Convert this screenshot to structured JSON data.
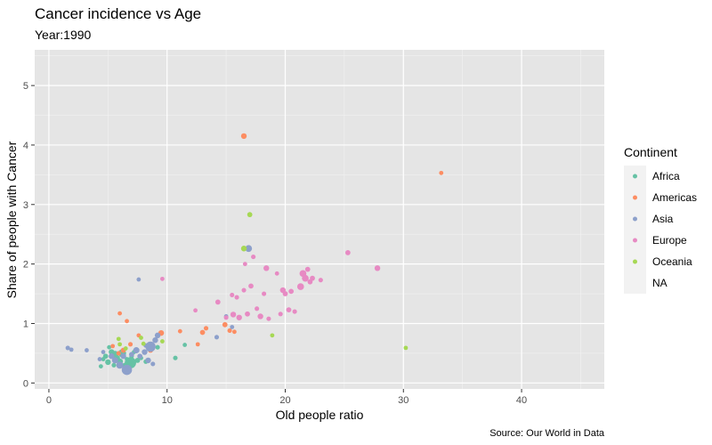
{
  "chart_data": {
    "type": "scatter",
    "title": "Cancer incidence vs Age",
    "subtitle": "Year:1990",
    "xlabel": "Old people ratio",
    "ylabel": "Share of people with Cancer",
    "caption": "Source: Our World in Data",
    "xlim": [
      -1.2,
      47
    ],
    "ylim": [
      -0.1,
      5.6
    ],
    "xticks": [
      0,
      10,
      20,
      30,
      40
    ],
    "yticks": [
      0,
      1,
      2,
      3,
      4,
      5
    ],
    "grid": true,
    "legend": {
      "title": "Continent",
      "placement": "right",
      "entries": [
        {
          "name": "Africa",
          "color": "#66c2a5"
        },
        {
          "name": "Americas",
          "color": "#fc8d62"
        },
        {
          "name": "Asia",
          "color": "#8da0cb"
        },
        {
          "name": "Europe",
          "color": "#e78ac3"
        },
        {
          "name": "Oceania",
          "color": "#a6d854"
        },
        {
          "name": "NA",
          "color": null
        }
      ]
    },
    "series": [
      {
        "name": "Africa",
        "color": "#66c2a5",
        "points": [
          {
            "x": 4.4,
            "y": 0.28,
            "s": 1.5
          },
          {
            "x": 4.6,
            "y": 0.4,
            "s": 1.5
          },
          {
            "x": 4.8,
            "y": 0.45,
            "s": 1.8
          },
          {
            "x": 5.0,
            "y": 0.35,
            "s": 2.0
          },
          {
            "x": 5.1,
            "y": 0.6,
            "s": 1.5
          },
          {
            "x": 5.3,
            "y": 0.52,
            "s": 2.0
          },
          {
            "x": 5.5,
            "y": 0.3,
            "s": 1.6
          },
          {
            "x": 5.6,
            "y": 0.48,
            "s": 2.5
          },
          {
            "x": 5.8,
            "y": 0.42,
            "s": 1.8
          },
          {
            "x": 6.0,
            "y": 0.36,
            "s": 2.2
          },
          {
            "x": 6.2,
            "y": 0.5,
            "s": 2.8
          },
          {
            "x": 6.4,
            "y": 0.3,
            "s": 1.6
          },
          {
            "x": 6.6,
            "y": 0.4,
            "s": 1.5
          },
          {
            "x": 6.8,
            "y": 0.33,
            "s": 1.8
          },
          {
            "x": 7.0,
            "y": 0.45,
            "s": 1.6
          },
          {
            "x": 7.2,
            "y": 0.52,
            "s": 1.5
          },
          {
            "x": 7.5,
            "y": 0.38,
            "s": 1.8
          },
          {
            "x": 7.8,
            "y": 0.42,
            "s": 1.5
          },
          {
            "x": 8.2,
            "y": 0.36,
            "s": 1.6
          },
          {
            "x": 9.2,
            "y": 0.6,
            "s": 1.6
          },
          {
            "x": 10.7,
            "y": 0.42,
            "s": 1.6
          },
          {
            "x": 11.5,
            "y": 0.64,
            "s": 1.5
          },
          {
            "x": 6.9,
            "y": 0.34,
            "s": 4.0
          }
        ]
      },
      {
        "name": "Americas",
        "color": "#fc8d62",
        "points": [
          {
            "x": 16.5,
            "y": 4.15,
            "s": 2.0
          },
          {
            "x": 33.2,
            "y": 3.53,
            "s": 1.5
          },
          {
            "x": 6.0,
            "y": 1.17,
            "s": 1.5
          },
          {
            "x": 6.6,
            "y": 1.04,
            "s": 1.5
          },
          {
            "x": 7.6,
            "y": 0.8,
            "s": 1.5
          },
          {
            "x": 6.9,
            "y": 0.65,
            "s": 1.6
          },
          {
            "x": 9.5,
            "y": 0.84,
            "s": 2.0
          },
          {
            "x": 11.1,
            "y": 0.87,
            "s": 1.5
          },
          {
            "x": 12.6,
            "y": 0.65,
            "s": 1.5
          },
          {
            "x": 13.3,
            "y": 0.92,
            "s": 1.6
          },
          {
            "x": 13.0,
            "y": 0.85,
            "s": 1.8
          },
          {
            "x": 14.9,
            "y": 0.98,
            "s": 1.8
          },
          {
            "x": 15.3,
            "y": 0.88,
            "s": 1.6
          },
          {
            "x": 15.7,
            "y": 0.86,
            "s": 1.5
          },
          {
            "x": 5.9,
            "y": 0.5,
            "s": 1.6
          },
          {
            "x": 6.3,
            "y": 0.55,
            "s": 1.8
          },
          {
            "x": 8.6,
            "y": 0.55,
            "s": 1.8
          },
          {
            "x": 5.4,
            "y": 0.62,
            "s": 1.5
          }
        ]
      },
      {
        "name": "Asia",
        "color": "#8da0cb",
        "points": [
          {
            "x": 1.6,
            "y": 0.59,
            "s": 1.6
          },
          {
            "x": 1.9,
            "y": 0.56,
            "s": 1.5
          },
          {
            "x": 3.2,
            "y": 0.55,
            "s": 1.5
          },
          {
            "x": 4.3,
            "y": 0.4,
            "s": 1.5
          },
          {
            "x": 4.6,
            "y": 0.52,
            "s": 1.5
          },
          {
            "x": 5.3,
            "y": 0.45,
            "s": 2.0
          },
          {
            "x": 5.6,
            "y": 0.38,
            "s": 2.2
          },
          {
            "x": 6.0,
            "y": 0.3,
            "s": 2.5
          },
          {
            "x": 6.3,
            "y": 0.45,
            "s": 2.0
          },
          {
            "x": 6.6,
            "y": 0.22,
            "s": 3.6
          },
          {
            "x": 7.0,
            "y": 0.48,
            "s": 1.8
          },
          {
            "x": 7.4,
            "y": 0.55,
            "s": 2.2
          },
          {
            "x": 7.7,
            "y": 0.45,
            "s": 1.8
          },
          {
            "x": 8.1,
            "y": 0.52,
            "s": 2.0
          },
          {
            "x": 8.4,
            "y": 0.38,
            "s": 2.0
          },
          {
            "x": 8.6,
            "y": 0.61,
            "s": 3.6
          },
          {
            "x": 8.8,
            "y": 0.32,
            "s": 1.6
          },
          {
            "x": 9.0,
            "y": 0.72,
            "s": 2.0
          },
          {
            "x": 9.2,
            "y": 0.8,
            "s": 2.0
          },
          {
            "x": 7.6,
            "y": 1.74,
            "s": 1.5
          },
          {
            "x": 14.2,
            "y": 0.77,
            "s": 1.6
          },
          {
            "x": 15.0,
            "y": 1.12,
            "s": 1.5
          },
          {
            "x": 15.5,
            "y": 0.94,
            "s": 1.5
          },
          {
            "x": 16.9,
            "y": 2.26,
            "s": 2.4
          },
          {
            "x": 8.2,
            "y": 0.63,
            "s": 1.6
          }
        ]
      },
      {
        "name": "Europe",
        "color": "#e78ac3",
        "points": [
          {
            "x": 9.6,
            "y": 1.75,
            "s": 1.5
          },
          {
            "x": 12.4,
            "y": 1.22,
            "s": 1.5
          },
          {
            "x": 14.3,
            "y": 1.36,
            "s": 1.8
          },
          {
            "x": 15.0,
            "y": 1.1,
            "s": 1.6
          },
          {
            "x": 15.5,
            "y": 1.48,
            "s": 1.6
          },
          {
            "x": 15.6,
            "y": 1.15,
            "s": 2.0
          },
          {
            "x": 15.9,
            "y": 1.44,
            "s": 1.6
          },
          {
            "x": 16.1,
            "y": 1.1,
            "s": 2.0
          },
          {
            "x": 16.5,
            "y": 1.56,
            "s": 1.6
          },
          {
            "x": 16.6,
            "y": 2.0,
            "s": 1.5
          },
          {
            "x": 16.8,
            "y": 1.16,
            "s": 1.8
          },
          {
            "x": 17.1,
            "y": 1.63,
            "s": 1.8
          },
          {
            "x": 17.3,
            "y": 2.12,
            "s": 1.6
          },
          {
            "x": 17.6,
            "y": 1.25,
            "s": 1.6
          },
          {
            "x": 17.9,
            "y": 1.12,
            "s": 2.0
          },
          {
            "x": 18.2,
            "y": 1.5,
            "s": 1.6
          },
          {
            "x": 18.4,
            "y": 1.93,
            "s": 2.0
          },
          {
            "x": 18.6,
            "y": 1.08,
            "s": 1.6
          },
          {
            "x": 19.3,
            "y": 1.84,
            "s": 1.5
          },
          {
            "x": 19.6,
            "y": 1.16,
            "s": 1.6
          },
          {
            "x": 19.8,
            "y": 1.56,
            "s": 2.0
          },
          {
            "x": 20.0,
            "y": 1.5,
            "s": 1.8
          },
          {
            "x": 20.3,
            "y": 1.23,
            "s": 1.8
          },
          {
            "x": 20.5,
            "y": 1.54,
            "s": 1.8
          },
          {
            "x": 20.8,
            "y": 1.2,
            "s": 1.6
          },
          {
            "x": 21.3,
            "y": 1.62,
            "s": 2.4
          },
          {
            "x": 21.5,
            "y": 1.84,
            "s": 2.4
          },
          {
            "x": 21.7,
            "y": 1.76,
            "s": 2.4
          },
          {
            "x": 21.9,
            "y": 1.91,
            "s": 1.8
          },
          {
            "x": 22.1,
            "y": 1.7,
            "s": 1.8
          },
          {
            "x": 22.3,
            "y": 1.76,
            "s": 1.8
          },
          {
            "x": 23.0,
            "y": 1.73,
            "s": 1.6
          },
          {
            "x": 25.3,
            "y": 2.19,
            "s": 1.8
          },
          {
            "x": 27.8,
            "y": 1.93,
            "s": 2.0
          }
        ]
      },
      {
        "name": "Oceania",
        "color": "#a6d854",
        "points": [
          {
            "x": 17.0,
            "y": 2.83,
            "s": 1.8
          },
          {
            "x": 16.5,
            "y": 2.26,
            "s": 2.0
          },
          {
            "x": 18.9,
            "y": 0.8,
            "s": 1.5
          },
          {
            "x": 30.2,
            "y": 0.59,
            "s": 1.5
          },
          {
            "x": 5.9,
            "y": 0.74,
            "s": 1.5
          },
          {
            "x": 6.0,
            "y": 0.65,
            "s": 1.5
          },
          {
            "x": 7.8,
            "y": 0.76,
            "s": 1.5
          },
          {
            "x": 9.6,
            "y": 0.7,
            "s": 1.5
          },
          {
            "x": 8.0,
            "y": 0.66,
            "s": 1.5
          },
          {
            "x": 6.5,
            "y": 0.58,
            "s": 1.5
          }
        ]
      }
    ]
  }
}
